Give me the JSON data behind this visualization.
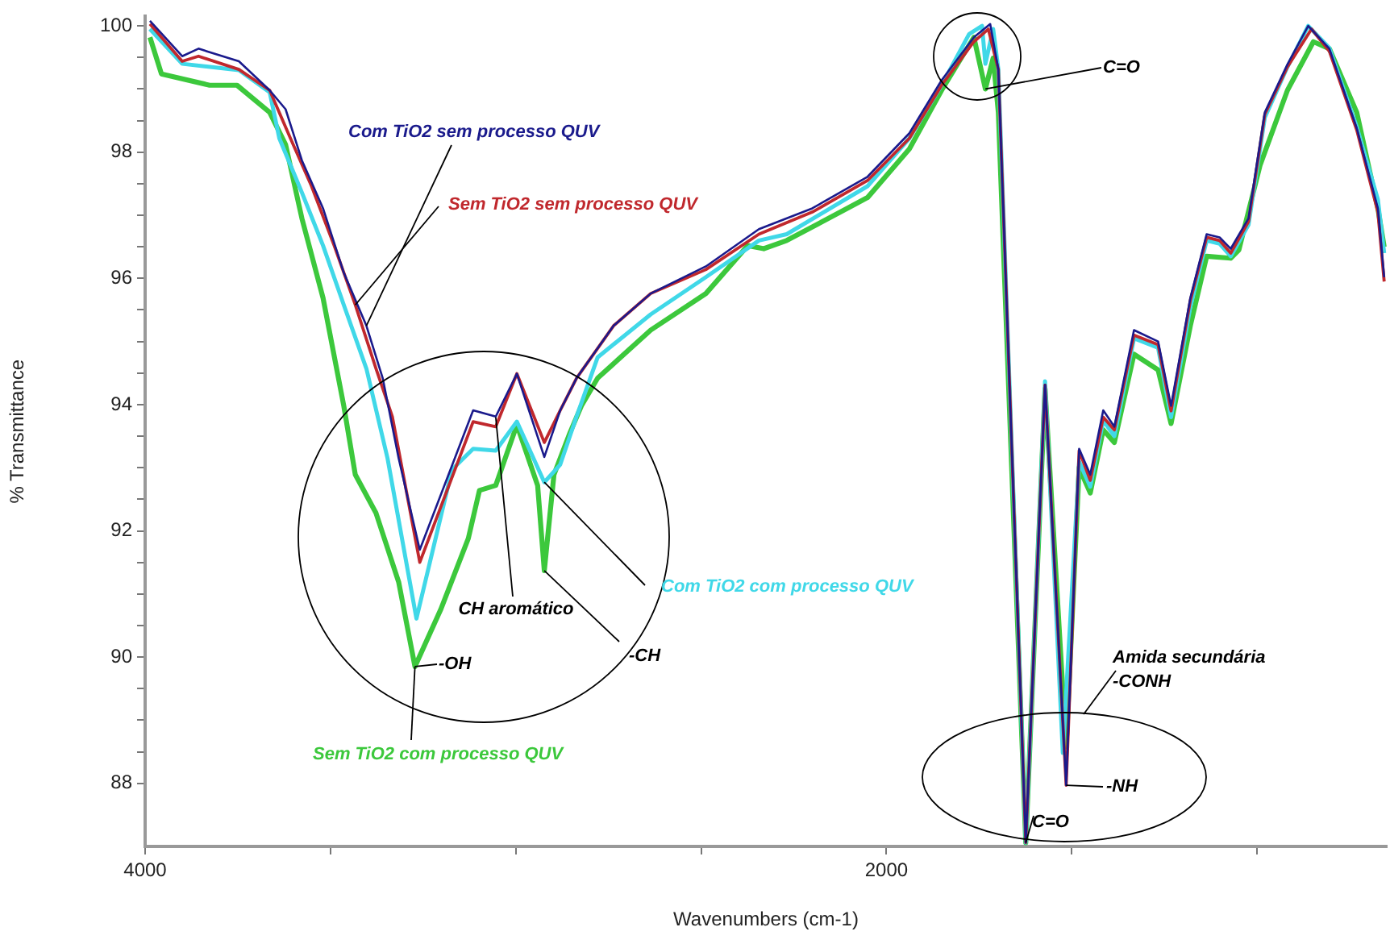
{
  "chart_data": {
    "type": "line",
    "xlabel": "Wavenumbers (cm-1)",
    "ylabel": "% Transmittance",
    "xlim": [
      4000,
      650
    ],
    "ylim": [
      87,
      100.15
    ],
    "xticks": [
      4000,
      {
        "value": 3500,
        "label": null
      },
      {
        "value": 3000,
        "label": null
      },
      {
        "value": 2500,
        "label": null
      },
      2000,
      {
        "value": 1500,
        "label": null
      },
      {
        "value": 1000,
        "label": null
      }
    ],
    "yticks": [
      88,
      {
        "value": 88.5,
        "label": null
      },
      {
        "value": 89,
        "label": null
      },
      {
        "value": 89.5,
        "label": null
      },
      90,
      {
        "value": 90.5,
        "label": null
      },
      {
        "value": 91,
        "label": null
      },
      {
        "value": 91.5,
        "label": null
      },
      92,
      {
        "value": 92.5,
        "label": null
      },
      {
        "value": 93,
        "label": null
      },
      {
        "value": 93.5,
        "label": null
      },
      94,
      {
        "value": 94.5,
        "label": null
      },
      {
        "value": 95,
        "label": null
      },
      {
        "value": 95.5,
        "label": null
      },
      96,
      {
        "value": 96.5,
        "label": null
      },
      {
        "value": 97,
        "label": null
      },
      {
        "value": 97.5,
        "label": null
      },
      98,
      {
        "value": 98.5,
        "label": null
      },
      {
        "value": 99,
        "label": null
      },
      {
        "value": 99.5,
        "label": null
      },
      100
    ],
    "grid": false,
    "legend": false,
    "marker": "none",
    "line_style": "solid",
    "series": [
      {
        "name": "Com TiO2 sem processo QUV",
        "color": "#1a1a8c",
        "x": [
          3987,
          3900,
          3856,
          3747,
          3664,
          3621,
          3577,
          3520,
          3464,
          3403,
          3359,
          3316,
          3259,
          3115,
          3054,
          2997,
          2923,
          2880,
          2836,
          2736,
          2636,
          2487,
          2344,
          2200,
          2051,
          1938,
          1851,
          1764,
          1720,
          1698,
          1624,
          1572,
          1515,
          1480,
          1450,
          1415,
          1385,
          1332,
          1267,
          1232,
          1180,
          1136,
          1101,
          1071,
          1023,
          979,
          918,
          862,
          805,
          731,
          674,
          657
        ],
        "values": [
          100.08,
          99.52,
          99.64,
          99.44,
          98.98,
          98.68,
          97.87,
          97.11,
          96.09,
          95.25,
          94.42,
          93.15,
          91.7,
          93.91,
          93.81,
          94.49,
          93.17,
          93.91,
          94.42,
          95.25,
          95.76,
          96.19,
          96.78,
          97.11,
          97.61,
          98.3,
          99.14,
          99.82,
          100.03,
          99.31,
          87.06,
          94.31,
          87.97,
          93.3,
          92.89,
          93.91,
          93.65,
          95.18,
          95.0,
          93.98,
          95.69,
          96.7,
          96.65,
          96.47,
          96.95,
          98.63,
          99.39,
          100.0,
          99.64,
          98.38,
          97.11,
          96.02
        ]
      },
      {
        "name": "Sem TiO2 sem processo QUV",
        "color": "#c0282d",
        "x": [
          3987,
          3900,
          3856,
          3747,
          3664,
          3608,
          3551,
          3490,
          3433,
          3377,
          3333,
          3259,
          3115,
          3054,
          2997,
          2923,
          2880,
          2836,
          2736,
          2636,
          2487,
          2344,
          2200,
          2051,
          1938,
          1851,
          1764,
          1725,
          1698,
          1624,
          1572,
          1515,
          1480,
          1450,
          1415,
          1385,
          1332,
          1267,
          1232,
          1180,
          1136,
          1101,
          1071,
          1023,
          979,
          918,
          853,
          805,
          731,
          674,
          657
        ],
        "values": [
          100.03,
          99.44,
          99.52,
          99.31,
          98.98,
          98.22,
          97.46,
          96.52,
          95.58,
          94.57,
          93.81,
          91.5,
          93.73,
          93.65,
          94.49,
          93.4,
          93.91,
          94.42,
          95.25,
          95.76,
          96.14,
          96.7,
          97.05,
          97.55,
          98.22,
          99.06,
          99.75,
          99.95,
          99.31,
          87.06,
          94.31,
          87.97,
          93.27,
          92.8,
          93.8,
          93.6,
          95.1,
          94.95,
          93.9,
          95.65,
          96.65,
          96.6,
          96.4,
          96.9,
          98.6,
          99.35,
          99.95,
          99.6,
          98.35,
          97.05,
          95.95
        ]
      },
      {
        "name": "Com TiO2 com processo QUV",
        "color": "#40d8e8",
        "x": [
          3987,
          3900,
          3747,
          3664,
          3638,
          3577,
          3520,
          3464,
          3403,
          3346,
          3268,
          3172,
          3115,
          3054,
          2997,
          2923,
          2880,
          2836,
          2779,
          2636,
          2487,
          2344,
          2269,
          2051,
          1938,
          1851,
          1777,
          1742,
          1733,
          1712,
          1698,
          1624,
          1572,
          1524,
          1480,
          1450,
          1415,
          1385,
          1332,
          1267,
          1232,
          1180,
          1136,
          1101,
          1071,
          1023,
          979,
          918,
          862,
          805,
          731,
          674,
          657
        ],
        "values": [
          99.95,
          99.4,
          99.3,
          98.95,
          98.22,
          97.36,
          96.52,
          95.58,
          94.57,
          93.15,
          90.61,
          92.97,
          93.3,
          93.27,
          93.73,
          92.77,
          93.05,
          93.81,
          94.75,
          95.43,
          96.02,
          96.6,
          96.7,
          97.46,
          98.22,
          99.06,
          99.87,
          100.0,
          99.4,
          99.95,
          99.31,
          87.06,
          94.37,
          88.48,
          93.1,
          92.7,
          93.75,
          93.5,
          95.05,
          94.9,
          93.8,
          95.55,
          96.6,
          96.55,
          96.35,
          96.85,
          98.55,
          99.35,
          100.0,
          99.65,
          98.4,
          97.25,
          96.4
        ]
      },
      {
        "name": "Sem TiO2 com processo QUV",
        "color": "#3cc83c",
        "x": [
          3987,
          3956,
          3826,
          3752,
          3664,
          3621,
          3577,
          3520,
          3464,
          3433,
          3377,
          3316,
          3272,
          3202,
          3128,
          3098,
          3054,
          2997,
          2941,
          2923,
          2897,
          2854,
          2823,
          2779,
          2636,
          2487,
          2374,
          2331,
          2269,
          2051,
          1938,
          1851,
          1764,
          1733,
          1712,
          1698,
          1624,
          1572,
          1515,
          1480,
          1450,
          1415,
          1385,
          1332,
          1267,
          1232,
          1180,
          1136,
          1071,
          1049,
          992,
          918,
          848,
          805,
          731,
          674,
          657
        ],
        "values": [
          99.82,
          99.24,
          99.06,
          99.06,
          98.63,
          98.12,
          96.95,
          95.69,
          93.98,
          92.89,
          92.28,
          91.19,
          89.85,
          90.76,
          91.88,
          92.64,
          92.72,
          93.68,
          92.72,
          91.37,
          92.89,
          93.55,
          93.98,
          94.42,
          95.18,
          95.76,
          96.52,
          96.47,
          96.6,
          97.28,
          98.05,
          98.98,
          99.82,
          99.0,
          99.49,
          98.63,
          87.06,
          94.25,
          88.58,
          93.0,
          92.6,
          93.6,
          93.4,
          94.8,
          94.55,
          93.7,
          95.25,
          96.35,
          96.32,
          96.45,
          97.79,
          98.98,
          99.75,
          99.64,
          98.63,
          97.11,
          96.5
        ]
      }
    ],
    "annotations": [
      {
        "text": "C=O",
        "x": 1733,
        "y": 99.0
      },
      {
        "text": "CH aromático",
        "x": 3054,
        "y": 93.8
      },
      {
        "text": "-CH",
        "x": 2923,
        "y": 91.37
      },
      {
        "text": "-OH",
        "x": 3272,
        "y": 89.85
      },
      "Amida secundária\n-CONH",
      {
        "text": "-NH",
        "x": 1515,
        "y": 87.97
      },
      {
        "text": "C=O",
        "x": 1624,
        "y": 87.06
      }
    ]
  }
}
